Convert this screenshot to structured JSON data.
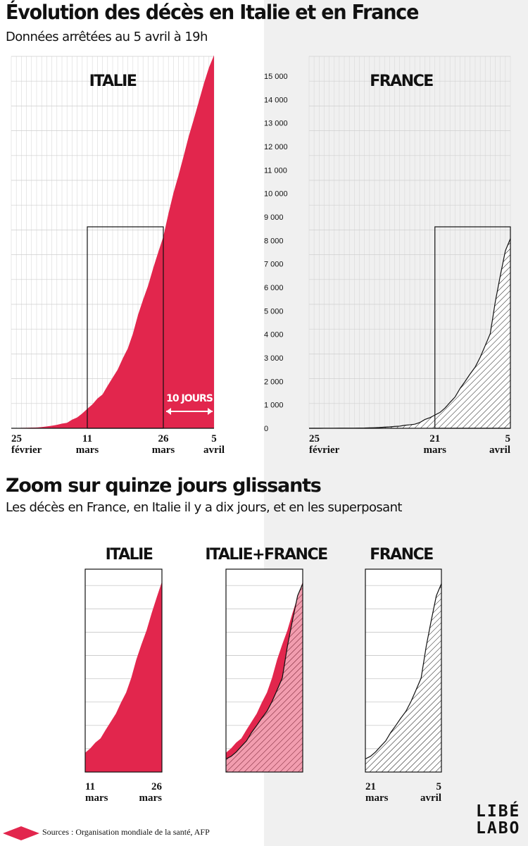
{
  "header": {
    "title": "Évolution des décès en Italie et en France",
    "subtitle": "Données arrêtées au 5 avril à 19h"
  },
  "zoom_header": {
    "title": "Zoom sur quinze jours glissants",
    "subtitle": "Les décès en France, en Italie il y a dix jours, et en les superposant"
  },
  "footer": {
    "sources": "Sources : Organisation mondiale de la santé, AFP",
    "logo_line1": "LIBÉ",
    "logo_line2": "LABO"
  },
  "colors": {
    "italy": "#e2264d",
    "france_hatch": "#111111",
    "right_background": "#f0f0f0"
  },
  "chart_data": [
    {
      "type": "area",
      "panel": "main-italy",
      "label": "ITALIE",
      "x": [
        "25 février",
        "26 février",
        "27 février",
        "28 février",
        "29 février",
        "1 mars",
        "2 mars",
        "3 mars",
        "4 mars",
        "5 mars",
        "6 mars",
        "7 mars",
        "8 mars",
        "9 mars",
        "10 mars",
        "11 mars",
        "12 mars",
        "13 mars",
        "14 mars",
        "15 mars",
        "16 mars",
        "17 mars",
        "18 mars",
        "19 mars",
        "20 mars",
        "21 mars",
        "22 mars",
        "23 mars",
        "24 mars",
        "25 mars",
        "26 mars",
        "27 mars",
        "28 mars",
        "29 mars",
        "30 mars",
        "31 mars",
        "1 avril",
        "2 avril",
        "3 avril",
        "4 avril",
        "5 avril"
      ],
      "values": [
        11,
        12,
        17,
        21,
        29,
        34,
        52,
        79,
        107,
        148,
        197,
        233,
        366,
        463,
        631,
        827,
        1016,
        1266,
        1441,
        1809,
        2158,
        2503,
        2978,
        3405,
        4032,
        4825,
        5476,
        6077,
        6820,
        7503,
        8165,
        9134,
        10023,
        10779,
        11591,
        12428,
        13155,
        13915,
        14681,
        15362,
        15887
      ],
      "x_tick_labels": [
        [
          "25",
          "février"
        ],
        [
          "11",
          "mars"
        ],
        [
          "26",
          "mars"
        ],
        [
          "5",
          "avril"
        ]
      ],
      "y_ticks": [
        "0",
        "1 000",
        "2 000",
        "3 000",
        "4 000",
        "5 000",
        "6 000",
        "7 000",
        "8 000",
        "9 000",
        "10 000",
        "11 000",
        "12 000",
        "13 000",
        "14 000",
        "15 000"
      ],
      "ylim": [
        0,
        15500
      ],
      "grid": true,
      "annotation": "10 JOURS"
    },
    {
      "type": "area",
      "panel": "main-france",
      "label": "FRANCE",
      "x": [
        "25 février",
        "26 février",
        "27 février",
        "28 février",
        "29 février",
        "1 mars",
        "2 mars",
        "3 mars",
        "4 mars",
        "5 mars",
        "6 mars",
        "7 mars",
        "8 mars",
        "9 mars",
        "10 mars",
        "11 mars",
        "12 mars",
        "13 mars",
        "14 mars",
        "15 mars",
        "16 mars",
        "17 mars",
        "18 mars",
        "19 mars",
        "20 mars",
        "21 mars",
        "22 mars",
        "23 mars",
        "24 mars",
        "25 mars",
        "26 mars",
        "27 mars",
        "28 mars",
        "29 mars",
        "30 mars",
        "31 mars",
        "1 avril",
        "2 avril",
        "3 avril",
        "4 avril",
        "5 avril"
      ],
      "values": [
        1,
        1,
        1,
        2,
        2,
        2,
        3,
        4,
        4,
        6,
        9,
        11,
        19,
        25,
        33,
        48,
        61,
        79,
        91,
        127,
        148,
        175,
        244,
        372,
        450,
        562,
        674,
        860,
        1100,
        1331,
        1696,
        1995,
        2314,
        2606,
        3024,
        3523,
        4032,
        5387,
        6507,
        7560,
        8078
      ],
      "x_tick_labels": [
        [
          "25",
          "février"
        ],
        [
          "21",
          "mars"
        ],
        [
          "5",
          "avril"
        ]
      ],
      "ylim": [
        0,
        15500
      ],
      "grid": true
    },
    {
      "type": "area",
      "panel": "zoom-italy",
      "label": "ITALIE",
      "x": [
        "11 mars",
        "12 mars",
        "13 mars",
        "14 mars",
        "15 mars",
        "16 mars",
        "17 mars",
        "18 mars",
        "19 mars",
        "20 mars",
        "21 mars",
        "22 mars",
        "23 mars",
        "24 mars",
        "25 mars",
        "26 mars"
      ],
      "values": [
        827,
        1016,
        1266,
        1441,
        1809,
        2158,
        2503,
        2978,
        3405,
        4032,
        4825,
        5476,
        6077,
        6820,
        7503,
        8165
      ],
      "x_tick_labels": [
        [
          "11",
          "mars"
        ],
        [
          "26",
          "mars"
        ]
      ],
      "ylim": [
        0,
        8700
      ],
      "grid": true
    },
    {
      "type": "area",
      "panel": "zoom-overlay",
      "label": "ITALIE+FRANCE",
      "ylim": [
        0,
        8700
      ],
      "grid": true
    },
    {
      "type": "area",
      "panel": "zoom-france",
      "label": "FRANCE",
      "x": [
        "21 mars",
        "22 mars",
        "23 mars",
        "24 mars",
        "25 mars",
        "26 mars",
        "27 mars",
        "28 mars",
        "29 mars",
        "30 mars",
        "31 mars",
        "1 avril",
        "2 avril",
        "3 avril",
        "4 avril",
        "5 avril"
      ],
      "values": [
        562,
        674,
        860,
        1100,
        1331,
        1696,
        1995,
        2314,
        2606,
        3024,
        3523,
        4032,
        5387,
        6507,
        7560,
        8078
      ],
      "x_tick_labels": [
        [
          "21",
          "mars"
        ],
        [
          "5",
          "avril"
        ]
      ],
      "ylim": [
        0,
        8700
      ],
      "grid": true
    }
  ]
}
